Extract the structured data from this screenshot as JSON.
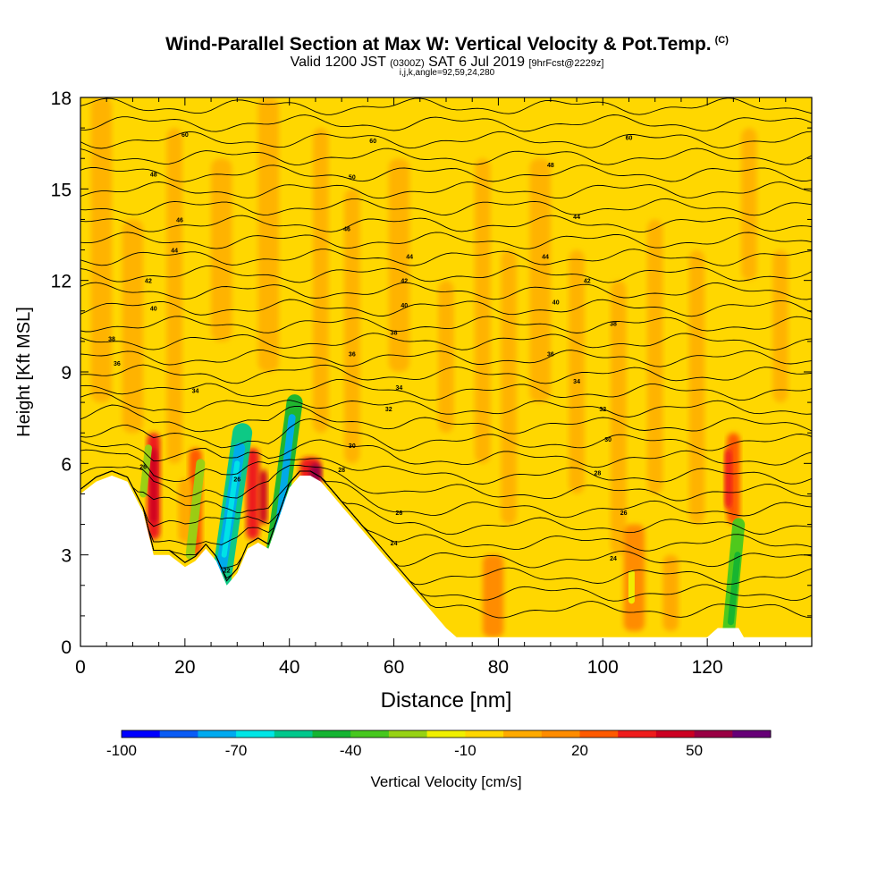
{
  "chart_data": {
    "type": "heatmap",
    "title": "Wind-Parallel Section at Max W: Vertical Velocity & Pot.Temp.",
    "title_tag": "(C)",
    "subtitle_valid": "Valid 1200 JST",
    "subtitle_utc": "(0300Z)",
    "subtitle_date": "SAT 6 Jul 2019",
    "subtitle_fcst": "[9hrFcst@2229z]",
    "subtitle_indices": "i,j,k,angle=92,59,24,280",
    "xlabel": "Distance [nm]",
    "ylabel": "Height [Kft MSL]",
    "xlim": [
      0,
      140
    ],
    "ylim": [
      0,
      18
    ],
    "x_ticks": [
      "0",
      "20",
      "40",
      "60",
      "80",
      "100",
      "120"
    ],
    "y_ticks": [
      "0",
      "3",
      "6",
      "9",
      "12",
      "15",
      "18"
    ],
    "colorbar": {
      "label": "Vertical Velocity [cm/s]",
      "tick_labels": [
        "-100",
        "-70",
        "-40",
        "-10",
        "20",
        "50"
      ],
      "colors": [
        "#0000ff",
        "#0a5cf5",
        "#00aaf0",
        "#00e6e6",
        "#00c88c",
        "#14b432",
        "#46c81e",
        "#96d214",
        "#f0f000",
        "#ffd700",
        "#ffaa00",
        "#ff8c00",
        "#ff5a00",
        "#ee1c1c",
        "#cc0022",
        "#990044",
        "#660077"
      ]
    },
    "terrain_profile": {
      "x": [
        0,
        3,
        6,
        9,
        12,
        14,
        17,
        20,
        22,
        24,
        26,
        28,
        30,
        32,
        34,
        36,
        38,
        40,
        42,
        44,
        46,
        48,
        50,
        52,
        54,
        56,
        58,
        60,
        62,
        64,
        66,
        68,
        70,
        72,
        120,
        122,
        126,
        127,
        140
      ],
      "y": [
        5.0,
        5.4,
        5.6,
        5.4,
        4.4,
        3.0,
        3.0,
        2.6,
        2.8,
        3.2,
        2.8,
        2.0,
        2.4,
        3.2,
        3.4,
        3.2,
        4.2,
        5.2,
        5.6,
        5.6,
        5.4,
        5.0,
        4.6,
        4.2,
        3.8,
        3.4,
        3.0,
        2.6,
        2.2,
        1.8,
        1.4,
        1.0,
        0.6,
        0.3,
        0.3,
        0.6,
        0.6,
        0.3,
        0.3
      ]
    },
    "theta_labels": [
      {
        "x": 20,
        "y": 16.8,
        "text": "60"
      },
      {
        "x": 56,
        "y": 16.6,
        "text": "60"
      },
      {
        "x": 105,
        "y": 16.7,
        "text": "60"
      },
      {
        "x": 14,
        "y": 15.5,
        "text": "48"
      },
      {
        "x": 52,
        "y": 15.4,
        "text": "50"
      },
      {
        "x": 90,
        "y": 15.8,
        "text": "48"
      },
      {
        "x": 19,
        "y": 14.0,
        "text": "46"
      },
      {
        "x": 51,
        "y": 13.7,
        "text": "46"
      },
      {
        "x": 95,
        "y": 14.1,
        "text": "44"
      },
      {
        "x": 18,
        "y": 13.0,
        "text": "44"
      },
      {
        "x": 63,
        "y": 12.8,
        "text": "44"
      },
      {
        "x": 89,
        "y": 12.8,
        "text": "44"
      },
      {
        "x": 13,
        "y": 12.0,
        "text": "42"
      },
      {
        "x": 62,
        "y": 12.0,
        "text": "42"
      },
      {
        "x": 97,
        "y": 12.0,
        "text": "42"
      },
      {
        "x": 14,
        "y": 11.1,
        "text": "40"
      },
      {
        "x": 62,
        "y": 11.2,
        "text": "40"
      },
      {
        "x": 91,
        "y": 11.3,
        "text": "40"
      },
      {
        "x": 6,
        "y": 10.1,
        "text": "38"
      },
      {
        "x": 60,
        "y": 10.3,
        "text": "38"
      },
      {
        "x": 102,
        "y": 10.6,
        "text": "38"
      },
      {
        "x": 7,
        "y": 9.3,
        "text": "36"
      },
      {
        "x": 52,
        "y": 9.6,
        "text": "36"
      },
      {
        "x": 90,
        "y": 9.6,
        "text": "36"
      },
      {
        "x": 22,
        "y": 8.4,
        "text": "34"
      },
      {
        "x": 61,
        "y": 8.5,
        "text": "34"
      },
      {
        "x": 95,
        "y": 8.7,
        "text": "34"
      },
      {
        "x": 59,
        "y": 7.8,
        "text": "32"
      },
      {
        "x": 100,
        "y": 7.8,
        "text": "32"
      },
      {
        "x": 52,
        "y": 6.6,
        "text": "30"
      },
      {
        "x": 101,
        "y": 6.8,
        "text": "30"
      },
      {
        "x": 50,
        "y": 5.8,
        "text": "28"
      },
      {
        "x": 99,
        "y": 5.7,
        "text": "28"
      },
      {
        "x": 12,
        "y": 5.9,
        "text": "26"
      },
      {
        "x": 30,
        "y": 5.5,
        "text": "26"
      },
      {
        "x": 61,
        "y": 4.4,
        "text": "26"
      },
      {
        "x": 104,
        "y": 4.4,
        "text": "26"
      },
      {
        "x": 60,
        "y": 3.4,
        "text": "24"
      },
      {
        "x": 102,
        "y": 2.9,
        "text": "24"
      },
      {
        "x": 28,
        "y": 2.5,
        "text": "22"
      }
    ]
  }
}
